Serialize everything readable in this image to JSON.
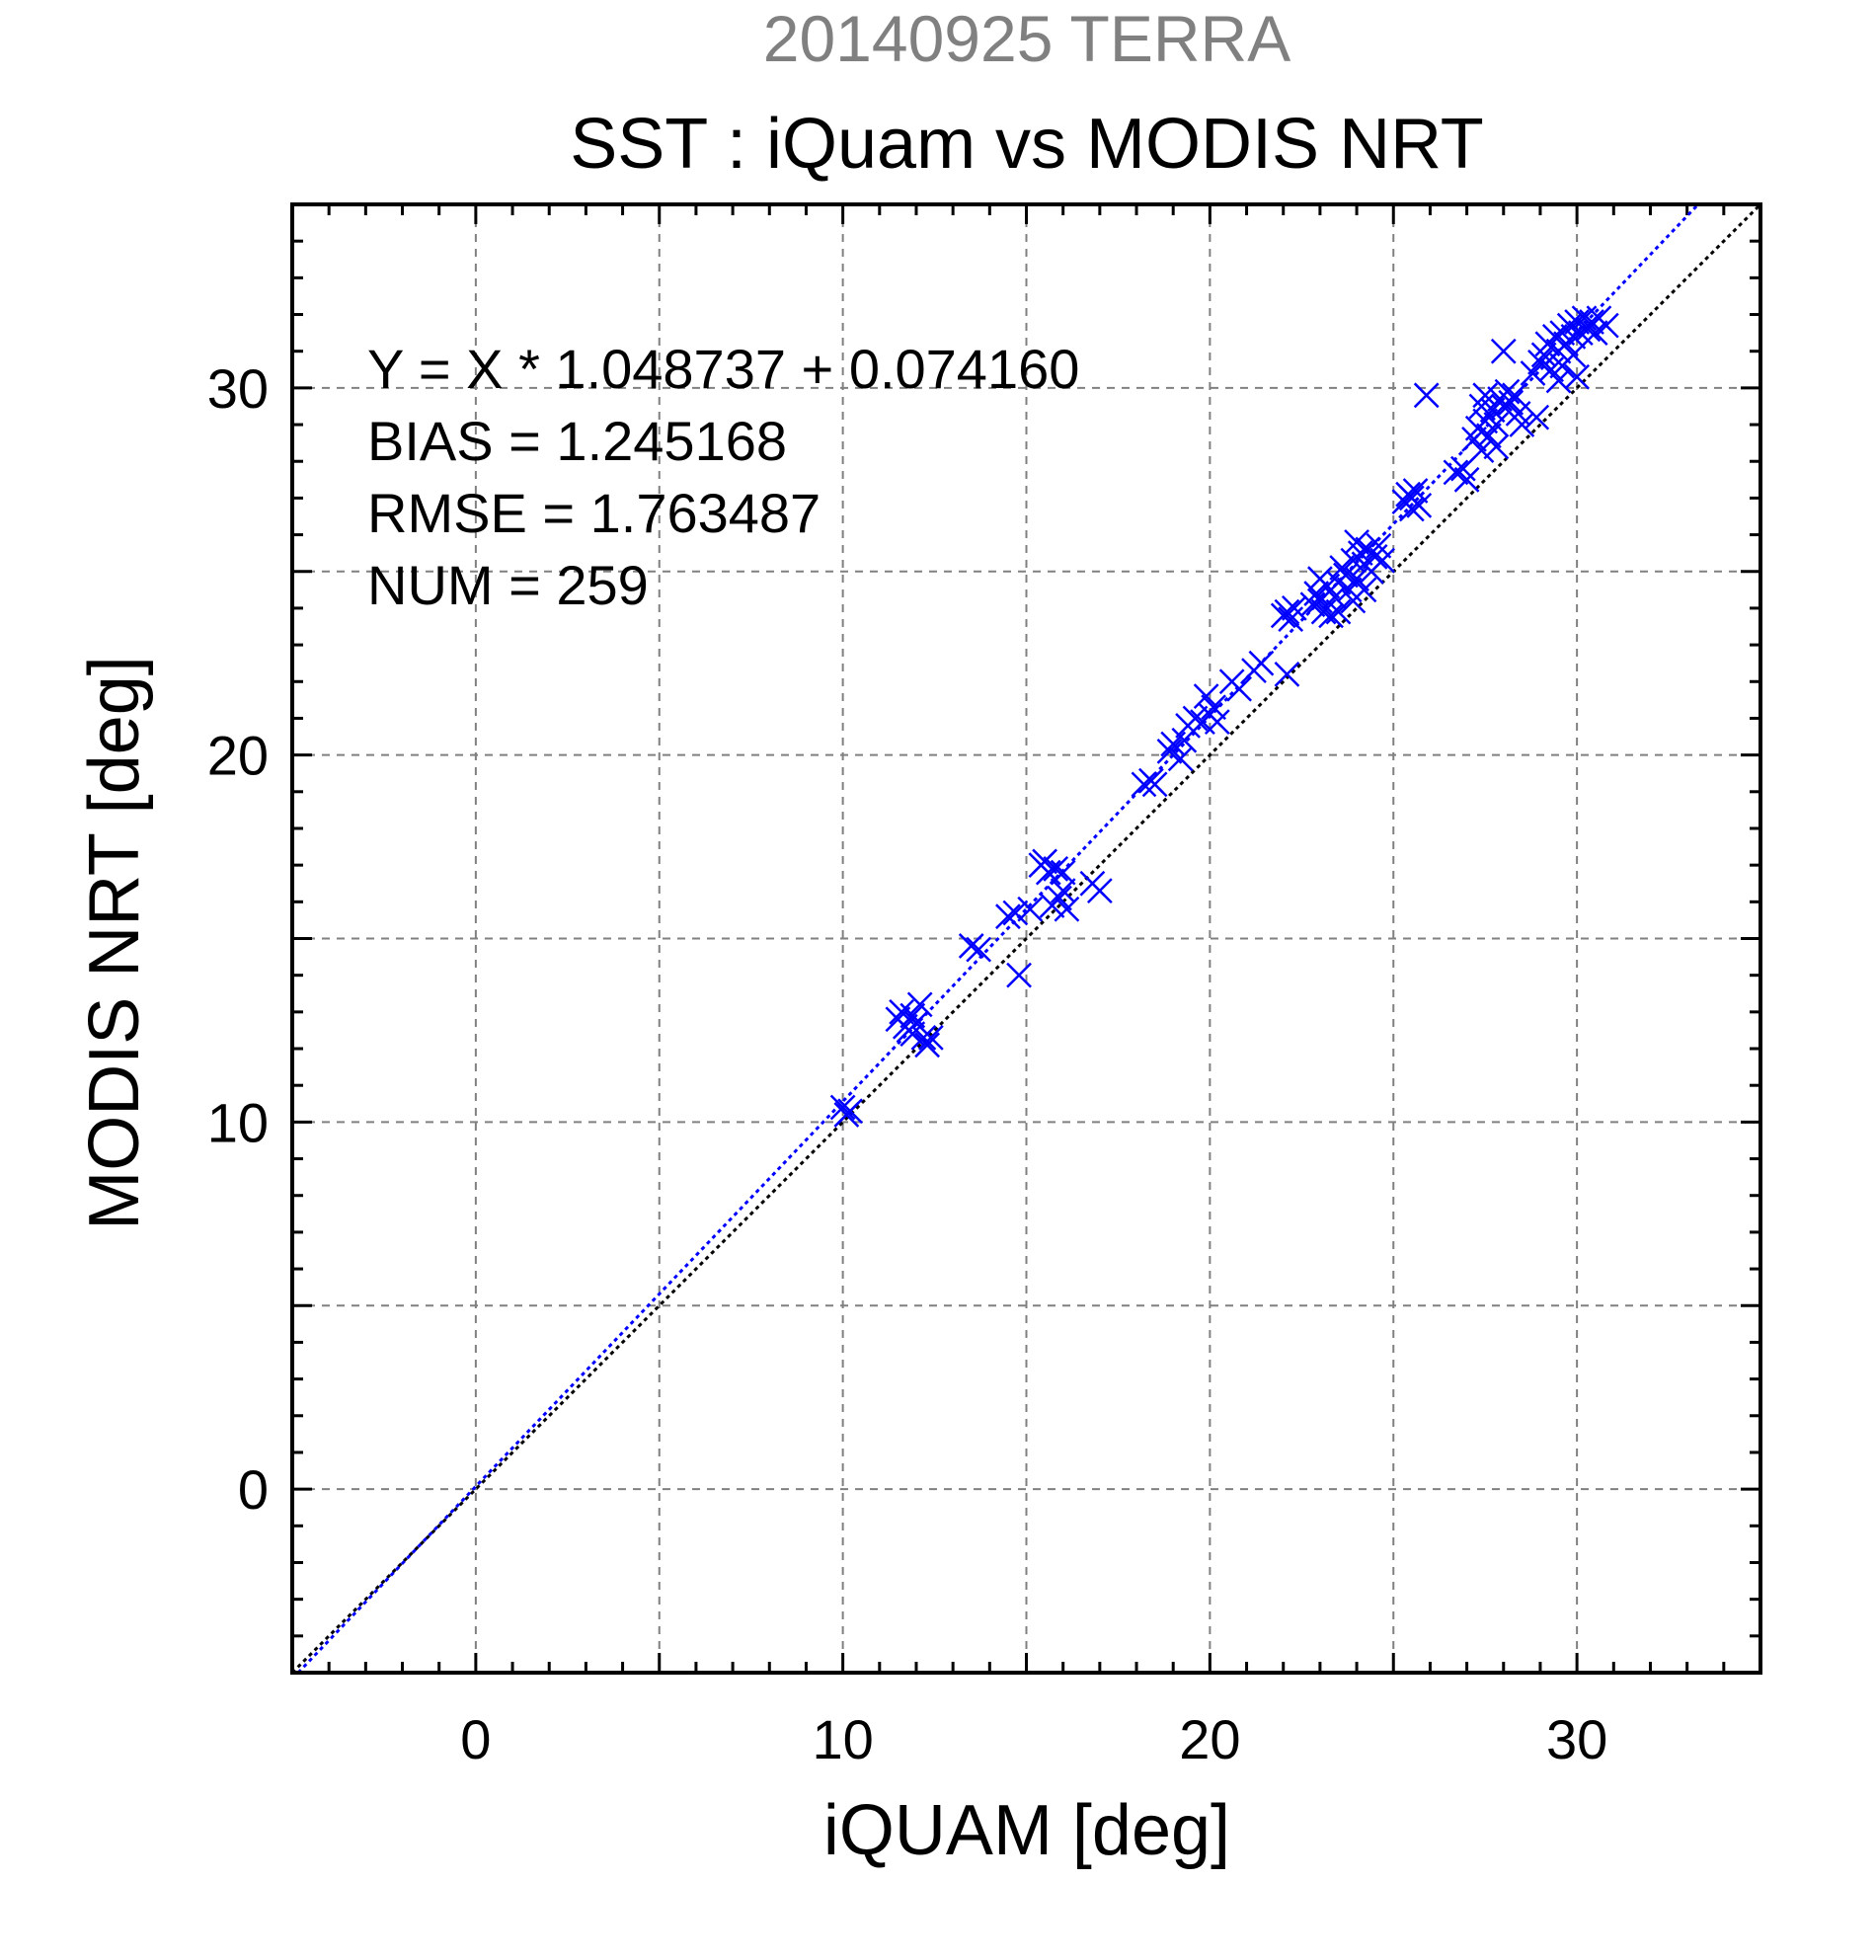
{
  "header": {
    "subtitle": "20140925 TERRA",
    "title": "SST : iQuam vs MODIS NRT"
  },
  "colors": {
    "series": "#0000ff",
    "subtitle": "#808080",
    "grid": "#808080",
    "text": "#000000"
  },
  "chart_data": {
    "type": "scatter",
    "title": "SST : iQuam vs MODIS NRT",
    "subtitle": "20140925 TERRA",
    "xlabel": "iQUAM [deg]",
    "ylabel": "MODIS NRT [deg]",
    "xlim": [
      -5,
      35
    ],
    "ylim": [
      -5,
      35
    ],
    "xticks": [
      0,
      10,
      20,
      30
    ],
    "yticks": [
      0,
      10,
      20,
      30
    ],
    "grid": true,
    "marker": "x",
    "annotations": [
      "Y = X * 1.048737 + 0.074160",
      "BIAS = 1.245168",
      "RMSE = 1.763487",
      "NUM = 259"
    ],
    "lines": [
      {
        "kind": "identity",
        "slope": 1,
        "intercept": 0,
        "color": "#000000",
        "style": "dotted"
      },
      {
        "kind": "fit",
        "slope": 1.048737,
        "intercept": 0.07416,
        "color": "#0000ff",
        "style": "dotted"
      }
    ],
    "points": [
      [
        10.0,
        10.4
      ],
      [
        10.2,
        10.3
      ],
      [
        10.1,
        10.2
      ],
      [
        11.5,
        12.8
      ],
      [
        11.6,
        13.0
      ],
      [
        11.7,
        12.6
      ],
      [
        11.8,
        12.5
      ],
      [
        11.9,
        12.9
      ],
      [
        12.0,
        12.7
      ],
      [
        12.1,
        13.2
      ],
      [
        12.2,
        12.3
      ],
      [
        12.3,
        12.1
      ],
      [
        12.4,
        12.3
      ],
      [
        11.9,
        12.4
      ],
      [
        13.5,
        14.8
      ],
      [
        13.7,
        14.7
      ],
      [
        14.5,
        15.6
      ],
      [
        14.7,
        15.7
      ],
      [
        15.1,
        15.8
      ],
      [
        14.8,
        14.0
      ],
      [
        15.4,
        17.0
      ],
      [
        15.5,
        17.1
      ],
      [
        15.6,
        16.8
      ],
      [
        15.8,
        16.9
      ],
      [
        16.0,
        16.8
      ],
      [
        15.7,
        15.9
      ],
      [
        15.9,
        16.1
      ],
      [
        16.1,
        15.8
      ],
      [
        16.0,
        16.3
      ],
      [
        16.8,
        16.5
      ],
      [
        17.0,
        16.3
      ],
      [
        18.2,
        19.2
      ],
      [
        18.4,
        19.3
      ],
      [
        18.5,
        19.2
      ],
      [
        18.9,
        20.1
      ],
      [
        19.0,
        20.3
      ],
      [
        19.2,
        19.9
      ],
      [
        19.3,
        20.4
      ],
      [
        19.4,
        20.8
      ],
      [
        19.6,
        21.0
      ],
      [
        19.8,
        20.9
      ],
      [
        20.0,
        21.1
      ],
      [
        20.1,
        21.3
      ],
      [
        20.2,
        20.9
      ],
      [
        19.9,
        21.6
      ],
      [
        20.6,
        22.0
      ],
      [
        20.8,
        21.8
      ],
      [
        21.2,
        22.3
      ],
      [
        21.4,
        22.5
      ],
      [
        22.1,
        22.2
      ],
      [
        22.0,
        23.8
      ],
      [
        22.1,
        23.9
      ],
      [
        22.2,
        23.7
      ],
      [
        22.3,
        24.0
      ],
      [
        22.8,
        24.1
      ],
      [
        22.9,
        24.4
      ],
      [
        23.0,
        24.2
      ],
      [
        23.1,
        23.9
      ],
      [
        23.2,
        24.6
      ],
      [
        23.3,
        23.8
      ],
      [
        23.4,
        24.3
      ],
      [
        23.5,
        24.7
      ],
      [
        23.6,
        25.1
      ],
      [
        23.7,
        24.9
      ],
      [
        23.8,
        24.5
      ],
      [
        23.9,
        25.3
      ],
      [
        24.0,
        24.8
      ],
      [
        24.1,
        25.5
      ],
      [
        24.2,
        25.2
      ],
      [
        24.3,
        25.6
      ],
      [
        24.4,
        25.0
      ],
      [
        24.5,
        25.4
      ],
      [
        24.6,
        25.7
      ],
      [
        24.7,
        25.3
      ],
      [
        23.5,
        23.9
      ],
      [
        23.9,
        24.2
      ],
      [
        24.2,
        24.5
      ],
      [
        23.0,
        24.8
      ],
      [
        24.0,
        25.8
      ],
      [
        25.3,
        26.9
      ],
      [
        25.4,
        27.1
      ],
      [
        25.5,
        27.0
      ],
      [
        25.6,
        27.2
      ],
      [
        25.7,
        26.8
      ],
      [
        25.5,
        26.7
      ],
      [
        25.9,
        29.8
      ],
      [
        26.7,
        27.7
      ],
      [
        26.9,
        27.8
      ],
      [
        27.0,
        27.5
      ],
      [
        27.2,
        28.6
      ],
      [
        27.3,
        28.9
      ],
      [
        27.4,
        28.3
      ],
      [
        27.5,
        29.1
      ],
      [
        27.6,
        28.7
      ],
      [
        27.7,
        29.4
      ],
      [
        27.8,
        29.0
      ],
      [
        27.9,
        29.7
      ],
      [
        28.0,
        29.5
      ],
      [
        28.1,
        29.9
      ],
      [
        28.2,
        29.6
      ],
      [
        28.3,
        29.8
      ],
      [
        28.4,
        29.3
      ],
      [
        27.5,
        29.8
      ],
      [
        27.8,
        28.4
      ],
      [
        28.5,
        29.0
      ],
      [
        28.9,
        29.2
      ],
      [
        27.4,
        29.5
      ],
      [
        28.0,
        31.0
      ],
      [
        28.8,
        30.4
      ],
      [
        29.0,
        30.7
      ],
      [
        29.1,
        30.9
      ],
      [
        29.2,
        31.2
      ],
      [
        29.3,
        30.5
      ],
      [
        29.4,
        31.4
      ],
      [
        29.5,
        31.0
      ],
      [
        29.6,
        31.5
      ],
      [
        29.7,
        31.2
      ],
      [
        29.8,
        31.7
      ],
      [
        29.9,
        31.4
      ],
      [
        30.0,
        31.8
      ],
      [
        30.1,
        31.5
      ],
      [
        30.2,
        31.9
      ],
      [
        30.3,
        31.6
      ],
      [
        30.4,
        31.8
      ],
      [
        30.5,
        31.5
      ],
      [
        30.6,
        31.9
      ],
      [
        30.8,
        31.7
      ],
      [
        29.9,
        30.9
      ],
      [
        29.6,
        30.6
      ],
      [
        30.0,
        30.3
      ],
      [
        29.5,
        30.2
      ]
    ]
  }
}
